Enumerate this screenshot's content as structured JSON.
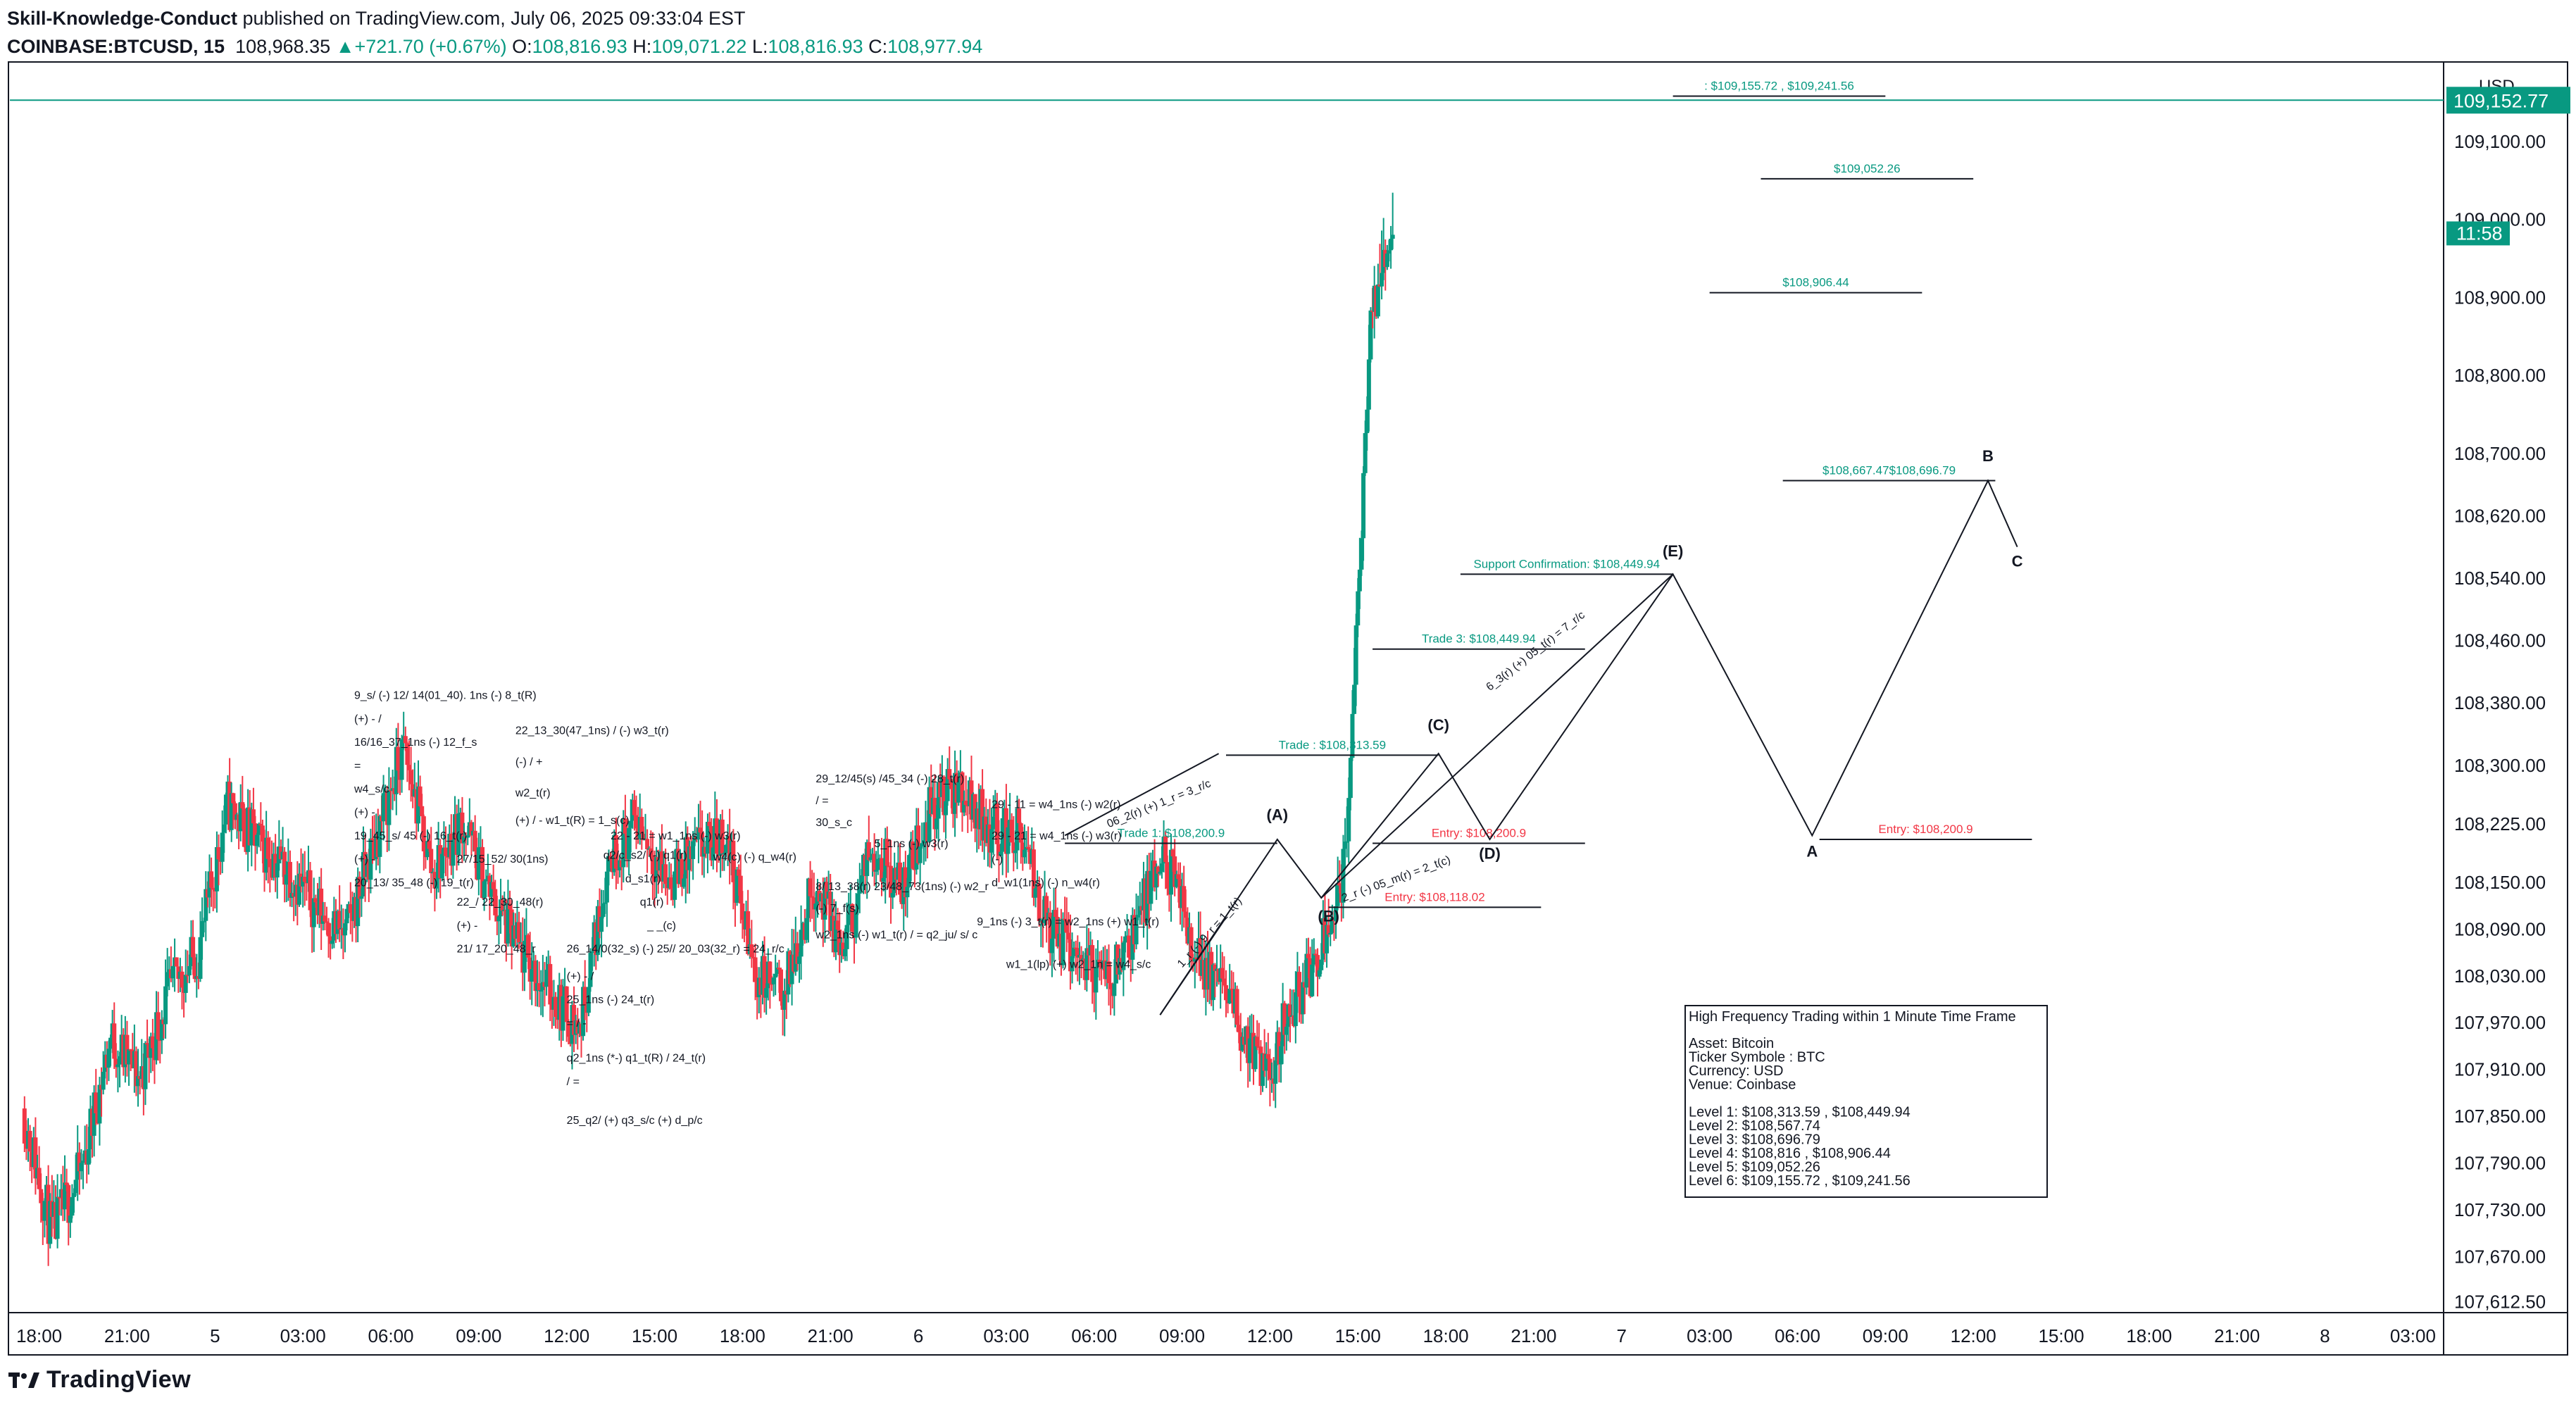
{
  "header": {
    "publisher": "Skill-Knowledge-Conduct",
    "publisher_suffix": " published on TradingView.com, July 06, 2025 09:33:04 EST",
    "symbol": "COINBASE:BTCUSD, 15",
    "last": "108,968.35",
    "change_arrow": "▲",
    "change": "+721.70 (+0.67%)",
    "o_label": "O:",
    "o": "108,816.93",
    "h_label": "H:",
    "h": "109,071.22",
    "l_label": "L:",
    "l": "108,816.93",
    "c_label": "C:",
    "c": "108,977.94"
  },
  "brand": {
    "logo_text": "TradingView"
  },
  "colors": {
    "up": "#089981",
    "down": "#f23645",
    "text": "#131722",
    "entry": "#f23645",
    "level": "#089981"
  },
  "chart_data": {
    "type": "candlestick",
    "currency": "USD",
    "price_range": [
      107600,
      109200
    ],
    "price_ticks": [
      {
        "v": 109100,
        "label": "109,100.00"
      },
      {
        "v": 109000,
        "label": "109,000.00"
      },
      {
        "v": 108900,
        "label": "108,900.00"
      },
      {
        "v": 108800,
        "label": "108,800.00"
      },
      {
        "v": 108700,
        "label": "108,700.00"
      },
      {
        "v": 108620,
        "label": "108,620.00"
      },
      {
        "v": 108540,
        "label": "108,540.00"
      },
      {
        "v": 108460,
        "label": "108,460.00"
      },
      {
        "v": 108380,
        "label": "108,380.00"
      },
      {
        "v": 108300,
        "label": "108,300.00"
      },
      {
        "v": 108225,
        "label": "108,225.00"
      },
      {
        "v": 108150,
        "label": "108,150.00"
      },
      {
        "v": 108090,
        "label": "108,090.00"
      },
      {
        "v": 108030,
        "label": "108,030.00"
      },
      {
        "v": 107970,
        "label": "107,970.00"
      },
      {
        "v": 107910,
        "label": "107,910.00"
      },
      {
        "v": 107850,
        "label": "107,850.00"
      },
      {
        "v": 107790,
        "label": "107,790.00"
      },
      {
        "v": 107730,
        "label": "107,730.00"
      },
      {
        "v": 107670,
        "label": "107,670.00"
      },
      {
        "v": 107612,
        "label": "107,612.50"
      }
    ],
    "last_price": {
      "v": 109152.77,
      "label": "109,152.77"
    },
    "countdown": {
      "v": 108982,
      "label": "11:58"
    },
    "time_ticks": [
      {
        "t": 2,
        "label": "18:00"
      },
      {
        "t": 14,
        "label": "21:00"
      },
      {
        "t": 26,
        "label": "5"
      },
      {
        "t": 38,
        "label": "03:00"
      },
      {
        "t": 50,
        "label": "06:00"
      },
      {
        "t": 62,
        "label": "09:00"
      },
      {
        "t": 74,
        "label": "12:00"
      },
      {
        "t": 86,
        "label": "15:00"
      },
      {
        "t": 98,
        "label": "18:00"
      },
      {
        "t": 110,
        "label": "21:00"
      },
      {
        "t": 122,
        "label": "6"
      },
      {
        "t": 134,
        "label": "03:00"
      },
      {
        "t": 146,
        "label": "06:00"
      },
      {
        "t": 158,
        "label": "09:00"
      },
      {
        "t": 170,
        "label": "12:00"
      },
      {
        "t": 182,
        "label": "15:00"
      },
      {
        "t": 194,
        "label": "18:00"
      },
      {
        "t": 206,
        "label": "21:00"
      },
      {
        "t": 218,
        "label": "7"
      },
      {
        "t": 230,
        "label": "03:00"
      },
      {
        "t": 242,
        "label": "06:00"
      },
      {
        "t": 254,
        "label": "09:00"
      },
      {
        "t": 266,
        "label": "12:00"
      },
      {
        "t": 278,
        "label": "15:00"
      },
      {
        "t": 290,
        "label": "18:00"
      },
      {
        "t": 302,
        "label": "21:00"
      },
      {
        "t": 314,
        "label": "8"
      },
      {
        "t": 326,
        "label": "03:00"
      }
    ],
    "time_range": [
      -2,
      330
    ],
    "candle_anchors": [
      [
        0,
        107860
      ],
      [
        4,
        107700
      ],
      [
        8,
        107780
      ],
      [
        12,
        107950
      ],
      [
        16,
        107900
      ],
      [
        20,
        108010
      ],
      [
        24,
        108060
      ],
      [
        28,
        108250
      ],
      [
        32,
        108200
      ],
      [
        36,
        108170
      ],
      [
        40,
        108120
      ],
      [
        44,
        108080
      ],
      [
        48,
        108200
      ],
      [
        52,
        108320
      ],
      [
        56,
        108160
      ],
      [
        60,
        108230
      ],
      [
        64,
        108130
      ],
      [
        68,
        108060
      ],
      [
        72,
        108010
      ],
      [
        76,
        107960
      ],
      [
        80,
        108180
      ],
      [
        84,
        108230
      ],
      [
        88,
        108150
      ],
      [
        92,
        108190
      ],
      [
        96,
        108210
      ],
      [
        100,
        108030
      ],
      [
        104,
        108010
      ],
      [
        108,
        108150
      ],
      [
        112,
        108060
      ],
      [
        116,
        108200
      ],
      [
        120,
        108140
      ],
      [
        124,
        108250
      ],
      [
        128,
        108270
      ],
      [
        132,
        108220
      ],
      [
        136,
        108210
      ],
      [
        140,
        108090
      ],
      [
        144,
        108060
      ],
      [
        148,
        108020
      ],
      [
        152,
        108100
      ],
      [
        156,
        108180
      ],
      [
        160,
        108060
      ],
      [
        164,
        108010
      ],
      [
        168,
        107930
      ],
      [
        170,
        107890
      ],
      [
        172,
        107970
      ],
      [
        176,
        108040
      ],
      [
        178,
        108100
      ],
      [
        180,
        108150
      ],
      [
        181,
        108240
      ],
      [
        182,
        108480
      ],
      [
        183,
        108650
      ],
      [
        184,
        108880
      ],
      [
        185,
        108900
      ],
      [
        186,
        108950
      ],
      [
        187,
        108968
      ]
    ],
    "overlay": {
      "levels": [
        {
          "t1": 225,
          "t2": 254,
          "v": 109158,
          "label": ": $109,155.72 , $109,241.56",
          "color": "level"
        },
        {
          "t1": 237,
          "t2": 266,
          "v": 109052,
          "label": "$109,052.26",
          "color": "level"
        },
        {
          "t1": 230,
          "t2": 259,
          "v": 108906,
          "label": "$108,906.44",
          "color": "level"
        },
        {
          "t1": 240,
          "t2": 269,
          "v": 108665,
          "label": "$108,667.47$108,696.79",
          "color": "level"
        },
        {
          "t1": 196,
          "t2": 225,
          "v": 108545,
          "label": "Support Confirmation: $108,449.94",
          "color": "level"
        },
        {
          "t1": 184,
          "t2": 213,
          "v": 108449,
          "label": "Trade 3: $108,449.94",
          "color": "level"
        },
        {
          "t1": 164,
          "t2": 193,
          "v": 108313,
          "label": "Trade : $108,313.59",
          "color": "level"
        },
        {
          "t1": 142,
          "t2": 171,
          "v": 108200,
          "label": "Trade 1: $108,200.9",
          "color": "level"
        },
        {
          "t1": 184,
          "t2": 213,
          "v": 108200,
          "label": "Entry: $108,200.9",
          "color": "entry"
        },
        {
          "t1": 178,
          "t2": 207,
          "v": 108118,
          "label": "Entry: $108,118.02",
          "color": "entry"
        },
        {
          "t1": 245,
          "t2": 274,
          "v": 108205,
          "label": "Entry: $108,200.9",
          "color": "entry"
        }
      ],
      "wave_path": [
        [
          155,
          107980
        ],
        [
          171,
          108205
        ],
        [
          177,
          108130
        ],
        [
          193,
          108315
        ],
        [
          200,
          108205
        ],
        [
          225,
          108545
        ],
        [
          244,
          108210
        ],
        [
          268,
          108665
        ],
        [
          272,
          108580
        ]
      ],
      "extra_segments": [
        [
          [
            155,
            107980
          ],
          [
            164,
            108105
          ]
        ],
        [
          [
            177,
            108130
          ],
          [
            225,
            108545
          ]
        ],
        [
          [
            142,
            108210
          ],
          [
            163,
            108315
          ]
        ]
      ],
      "wave_labels": [
        {
          "t": 171,
          "v": 108230,
          "text": "(A)"
        },
        {
          "t": 178,
          "v": 108100,
          "text": "(B)"
        },
        {
          "t": 193,
          "v": 108345,
          "text": "(C)"
        },
        {
          "t": 200,
          "v": 108180,
          "text": "(D)"
        },
        {
          "t": 225,
          "v": 108568,
          "text": "(E)"
        },
        {
          "t": 244,
          "v": 108183,
          "text": "A"
        },
        {
          "t": 268,
          "v": 108690,
          "text": "B"
        },
        {
          "t": 272,
          "v": 108555,
          "text": "C"
        }
      ],
      "rotated_labels": [
        {
          "t": 148,
          "v": 108220,
          "angle": -22,
          "text": "06_2(r) (+) 1_r = 3_r/c"
        },
        {
          "t": 158,
          "v": 108040,
          "angle": -48,
          "text": "1_r (-) 9_r = 1_t(r)"
        },
        {
          "t": 180,
          "v": 108125,
          "angle": -20,
          "text": "2_r (-) 05_m(r) = 2_t(c)"
        },
        {
          "t": 200,
          "v": 108395,
          "angle": -38,
          "text": "6_3(r) (+) 05_t(r) = 7_r/c"
        }
      ],
      "annotations": [
        {
          "t": 45,
          "v": 108385,
          "text": "9_s/ (-) 12/ 14(01_40). 1ns (-) 8_t(R)"
        },
        {
          "t": 45,
          "v": 108355,
          "text": "(+) - /"
        },
        {
          "t": 45,
          "v": 108325,
          "text": "16/16_37_1ns (-) 12_f_s"
        },
        {
          "t": 45,
          "v": 108295,
          "text": "="
        },
        {
          "t": 45,
          "v": 108265,
          "text": "w4_s/c"
        },
        {
          "t": 45,
          "v": 108235,
          "text": "(+) -"
        },
        {
          "t": 45,
          "v": 108205,
          "text": "19_45_s/ 45 (-) 16_t(r)"
        },
        {
          "t": 45,
          "v": 108175,
          "text": "(+) -"
        },
        {
          "t": 45,
          "v": 108145,
          "text": "20_13/ 35_48 (-) 19_t(r)"
        },
        {
          "t": 67,
          "v": 108340,
          "text": "22_13_30(47_1ns) / (-) w3_t(r)"
        },
        {
          "t": 67,
          "v": 108300,
          "text": "(-) / +"
        },
        {
          "t": 67,
          "v": 108260,
          "text": "w2_t(r)"
        },
        {
          "t": 67,
          "v": 108225,
          "text": "(+) / - w1_t(R) = 1_s(c)"
        },
        {
          "t": 59,
          "v": 108175,
          "text": "27/15_52/ 30(1ns)"
        },
        {
          "t": 59,
          "v": 108120,
          "text": "22_/ 22_30_48(r)"
        },
        {
          "t": 59,
          "v": 108090,
          "text": "(+) -"
        },
        {
          "t": 59,
          "v": 108060,
          "text": "21/ 17_20_48_r"
        },
        {
          "t": 74,
          "v": 108060,
          "text": "26_14/0(32_s) (-) 25// 20_03(32_r) = 24_r/c"
        },
        {
          "t": 74,
          "v": 108025,
          "text": "(+) - /"
        },
        {
          "t": 74,
          "v": 107995,
          "text": "25_1ns (-) 24_t(r)"
        },
        {
          "t": 74,
          "v": 107965,
          "text": "= / -"
        },
        {
          "t": 74,
          "v": 107920,
          "text": "q2_1ns (*-) q1_t(R) / 24_t(r)"
        },
        {
          "t": 74,
          "v": 107890,
          "text": "/ ="
        },
        {
          "t": 74,
          "v": 107840,
          "text": "25_q2/ (+) q3_s/c (+) d_p/c"
        },
        {
          "t": 80,
          "v": 108205,
          "text": "22 - 21 = w1_1ns (-) w3(r)"
        },
        {
          "t": 79,
          "v": 108180,
          "text": "q2/c_s2/ (-) q1(r)"
        },
        {
          "t": 82,
          "v": 108150,
          "text": "d_s1(r)"
        },
        {
          "t": 84,
          "v": 108120,
          "text": "q1(r)"
        },
        {
          "t": 85,
          "v": 108090,
          "text": "_ _(c)"
        },
        {
          "t": 94,
          "v": 108178,
          "text": "w4(c) (-) q_w4(r)"
        },
        {
          "t": 108,
          "v": 108278,
          "text": "29_12/45(s) /45_34 (-) 28_t(r)"
        },
        {
          "t": 108,
          "v": 108250,
          "text": "/ ="
        },
        {
          "t": 108,
          "v": 108222,
          "text": "30_s_c"
        },
        {
          "t": 116,
          "v": 108195,
          "text": "5_1ns (-) w3(r)"
        },
        {
          "t": 108,
          "v": 108140,
          "text": "8/ 13_38(r) 23/48_73(1ns) (-) w2_r"
        },
        {
          "t": 108,
          "v": 108112,
          "text": "(-) 7_f(s)"
        },
        {
          "t": 108,
          "v": 108078,
          "text": "w2_1ns (-) w1_t(r) / = q2_ju/ s/ c"
        },
        {
          "t": 132,
          "v": 108245,
          "text": "29 - 11 = w4_1ns (-) w2(r)"
        },
        {
          "t": 132,
          "v": 108205,
          "text": "29 - 21 = w4_1ns (-) w3(r)"
        },
        {
          "t": 132,
          "v": 108175,
          "text": "(-)"
        },
        {
          "t": 132,
          "v": 108145,
          "text": "d_w1(1ns) (-) n_w4(r)"
        },
        {
          "t": 130,
          "v": 108095,
          "text": "9_1ns (-) 3_t(r) = w2_1ns (+) w1_t(r)"
        },
        {
          "t": 134,
          "v": 108040,
          "text": "w1_1(lp) (+) w2_1n = w4_s/c"
        }
      ],
      "info_box": {
        "title": "High Frequency Trading within 1 Minute Time Frame",
        "lines": [
          "Asset: Bitcoin",
          "Ticker Symbole : BTC",
          "Currency: USD",
          "Venue: Coinbase",
          "",
          "Level 1: $108,313.59 , $108,449.94",
          "Level 2: $108,567.74",
          "Level 3: $108,696.79",
          "Level 4: $108,816 , $108,906.44",
          "Level 5: $109,052.26",
          "Level 6: $109,155.72 , $109,241.56"
        ]
      }
    }
  }
}
